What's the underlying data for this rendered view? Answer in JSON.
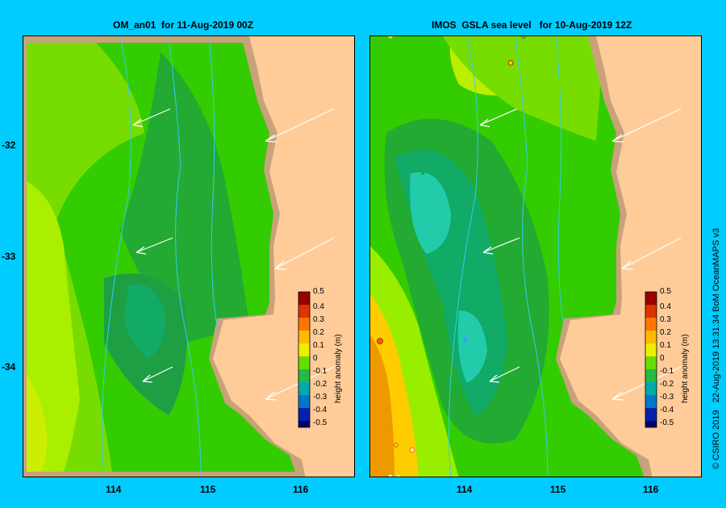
{
  "left_panel": {
    "title": "OM_an01  for 11-Aug-2019 00Z",
    "colorbar": {
      "label": "height anomaly (m)",
      "ticks": [
        "0.5",
        "0.4",
        "0.3",
        "0.2",
        "0.1",
        "0",
        "-0.1",
        "-0.2",
        "-0.3",
        "-0.4",
        "-0.5"
      ]
    }
  },
  "right_panel": {
    "title": "IMOS  GSLA sea level   for 10-Aug-2019 12Z",
    "colorbar": {
      "label": "height anomaly (m)",
      "ticks": [
        "0.5",
        "0.4",
        "0.3",
        "0.2",
        "0.1",
        "0",
        "-0.1",
        "-0.2",
        "-0.3",
        "-0.4",
        "-0.5"
      ]
    }
  },
  "axes": {
    "y_ticks": [
      "-32",
      "-33",
      "-34"
    ],
    "x_ticks": [
      "114",
      "115",
      "116"
    ]
  },
  "credit": "© CSIRO 2019   22-Aug-2019 13:31:34 BoM OceanMAPS v3",
  "colors": {
    "background": "#00ccff",
    "land": "#ffcc99",
    "shelf": "#c8a27a",
    "anomaly_0": "#33cc00",
    "anomaly_pos_0_1": "#99ee00",
    "anomaly_neg_0_1": "#22aa44"
  }
}
